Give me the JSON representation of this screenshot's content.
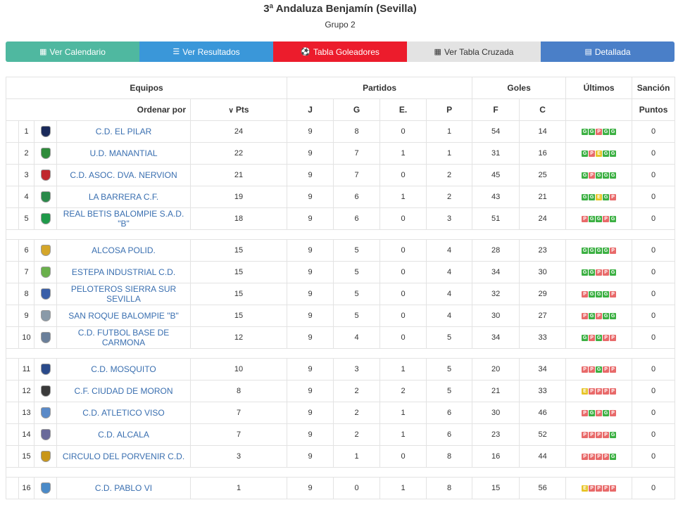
{
  "header": {
    "title": "3ª Andaluza Benjamín (Sevilla)",
    "subtitle": "Grupo 2"
  },
  "buttons": [
    {
      "label": "Ver Calendario",
      "icon": "calendar-icon",
      "color": "#4fb8a0"
    },
    {
      "label": "Ver Resultados",
      "icon": "list-icon",
      "color": "#3a97d9"
    },
    {
      "label": "Tabla Goleadores",
      "icon": "soccer-ball-icon",
      "color": "#ec1c2c"
    },
    {
      "label": "Ver Tabla Cruzada",
      "icon": "table-icon",
      "color": "#e3e3e3"
    },
    {
      "label": "Detallada",
      "icon": "detail-icon",
      "color": "#4a7fc8"
    }
  ],
  "table": {
    "headers": {
      "equipos": "Equipos",
      "partidos": "Partidos",
      "goles": "Goles",
      "ultimos": "Últimos",
      "sancion": "Sanción",
      "ordenar": "Ordenar por",
      "pts": "Pts",
      "j": "J",
      "g": "G",
      "e": "E.",
      "p": "P",
      "f": "F",
      "c": "C",
      "puntos": "Puntos"
    },
    "rows": [
      {
        "pos": "1",
        "name": "C.D. EL PILAR",
        "pts": "24",
        "j": "9",
        "g": "8",
        "e": "0",
        "p": "1",
        "f": "54",
        "c": "14",
        "last": [
          "G",
          "G",
          "P",
          "G",
          "G"
        ],
        "sancion": "0",
        "logo": "#1a2a5a"
      },
      {
        "pos": "2",
        "name": "U.D. MANANTIAL",
        "pts": "22",
        "j": "9",
        "g": "7",
        "e": "1",
        "p": "1",
        "f": "31",
        "c": "16",
        "last": [
          "G",
          "P",
          "E",
          "G",
          "G"
        ],
        "sancion": "0",
        "logo": "#2e8b3a"
      },
      {
        "pos": "3",
        "name": "C.D. ASOC. DVA. NERVION",
        "pts": "21",
        "j": "9",
        "g": "7",
        "e": "0",
        "p": "2",
        "f": "45",
        "c": "25",
        "last": [
          "G",
          "P",
          "G",
          "G",
          "G"
        ],
        "sancion": "0",
        "logo": "#c0282d"
      },
      {
        "pos": "4",
        "name": "LA BARRERA C.F.",
        "pts": "19",
        "j": "9",
        "g": "6",
        "e": "1",
        "p": "2",
        "f": "43",
        "c": "21",
        "last": [
          "G",
          "G",
          "E",
          "G",
          "P"
        ],
        "sancion": "0",
        "logo": "#2a8a4a"
      },
      {
        "pos": "5",
        "name": "REAL BETIS BALOMPIE S.A.D. \"B\"",
        "pts": "18",
        "j": "9",
        "g": "6",
        "e": "0",
        "p": "3",
        "f": "51",
        "c": "24",
        "last": [
          "P",
          "G",
          "G",
          "P",
          "G"
        ],
        "sancion": "0",
        "logo": "#1f9a4a"
      },
      {
        "pos": "6",
        "name": "ALCOSA POLID.",
        "pts": "15",
        "j": "9",
        "g": "5",
        "e": "0",
        "p": "4",
        "f": "28",
        "c": "23",
        "last": [
          "G",
          "G",
          "G",
          "G",
          "P"
        ],
        "sancion": "0",
        "logo": "#d4a62a"
      },
      {
        "pos": "7",
        "name": "ESTEPA INDUSTRIAL C.D.",
        "pts": "15",
        "j": "9",
        "g": "5",
        "e": "0",
        "p": "4",
        "f": "34",
        "c": "30",
        "last": [
          "G",
          "G",
          "P",
          "P",
          "G"
        ],
        "sancion": "0",
        "logo": "#6ab04c"
      },
      {
        "pos": "8",
        "name": "PELOTEROS SIERRA SUR SEVILLA",
        "pts": "15",
        "j": "9",
        "g": "5",
        "e": "0",
        "p": "4",
        "f": "32",
        "c": "29",
        "last": [
          "P",
          "G",
          "G",
          "G",
          "P"
        ],
        "sancion": "0",
        "logo": "#3a5fa8"
      },
      {
        "pos": "9",
        "name": "SAN ROQUE BALOMPIE \"B\"",
        "pts": "15",
        "j": "9",
        "g": "5",
        "e": "0",
        "p": "4",
        "f": "30",
        "c": "27",
        "last": [
          "P",
          "G",
          "P",
          "G",
          "G"
        ],
        "sancion": "0",
        "logo": "#8a9aa8"
      },
      {
        "pos": "10",
        "name": "C.D. FUTBOL BASE DE CARMONA",
        "pts": "12",
        "j": "9",
        "g": "4",
        "e": "0",
        "p": "5",
        "f": "34",
        "c": "33",
        "last": [
          "G",
          "P",
          "G",
          "P",
          "P"
        ],
        "sancion": "0",
        "logo": "#6a7f9a"
      },
      {
        "pos": "11",
        "name": "C.D. MOSQUITO",
        "pts": "10",
        "j": "9",
        "g": "3",
        "e": "1",
        "p": "5",
        "f": "20",
        "c": "34",
        "last": [
          "P",
          "P",
          "G",
          "P",
          "P"
        ],
        "sancion": "0",
        "logo": "#2a4a8a"
      },
      {
        "pos": "12",
        "name": "C.F. CIUDAD DE MORON",
        "pts": "8",
        "j": "9",
        "g": "2",
        "e": "2",
        "p": "5",
        "f": "21",
        "c": "33",
        "last": [
          "E",
          "P",
          "P",
          "P",
          "P"
        ],
        "sancion": "0",
        "logo": "#3a3a3a"
      },
      {
        "pos": "13",
        "name": "C.D. ATLETICO VISO",
        "pts": "7",
        "j": "9",
        "g": "2",
        "e": "1",
        "p": "6",
        "f": "30",
        "c": "46",
        "last": [
          "P",
          "G",
          "P",
          "G",
          "P"
        ],
        "sancion": "0",
        "logo": "#5a8ac8"
      },
      {
        "pos": "14",
        "name": "C.D. ALCALA",
        "pts": "7",
        "j": "9",
        "g": "2",
        "e": "1",
        "p": "6",
        "f": "23",
        "c": "52",
        "last": [
          "P",
          "P",
          "P",
          "P",
          "G"
        ],
        "sancion": "0",
        "logo": "#6a6a9a"
      },
      {
        "pos": "15",
        "name": "CIRCULO DEL PORVENIR C.D.",
        "pts": "3",
        "j": "9",
        "g": "1",
        "e": "0",
        "p": "8",
        "f": "16",
        "c": "44",
        "last": [
          "P",
          "P",
          "P",
          "P",
          "G"
        ],
        "sancion": "0",
        "logo": "#c8961a"
      },
      {
        "pos": "16",
        "name": "C.D. PABLO VI",
        "pts": "1",
        "j": "9",
        "g": "0",
        "e": "1",
        "p": "8",
        "f": "15",
        "c": "56",
        "last": [
          "E",
          "P",
          "P",
          "P",
          "P"
        ],
        "sancion": "0",
        "logo": "#4a8ac8"
      }
    ],
    "gap_after": [
      5,
      10,
      15
    ]
  }
}
